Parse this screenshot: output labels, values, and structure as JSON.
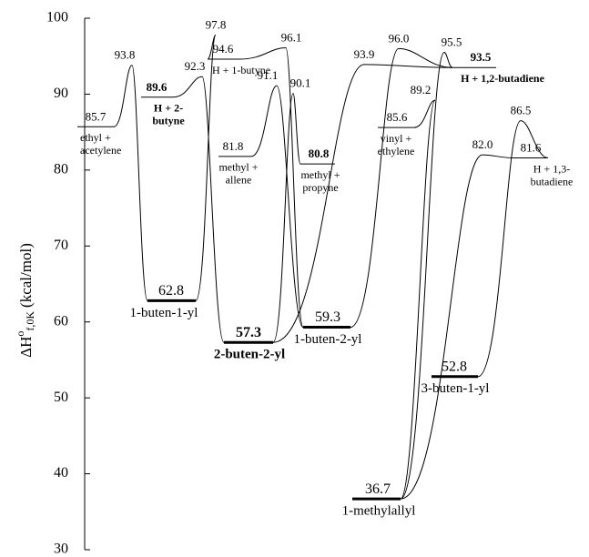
{
  "chart_data": {
    "type": "energy-diagram",
    "ylabel": {
      "main": "ΔH",
      "sup": "o",
      "sub": "f,0K",
      "unit": "(kcal/mol)"
    },
    "ylim": [
      30,
      100
    ],
    "yticks": [
      30,
      40,
      50,
      60,
      70,
      80,
      90,
      100
    ],
    "color": "#000000",
    "levels": {
      "labels": [
        [
          "ethyl +",
          "acetylene"
        ],
        [
          "H + 2-",
          "butyne"
        ],
        [
          "1-buten-1-yl"
        ],
        [
          "H + 1-butyne"
        ],
        [
          "methyl +",
          "allene"
        ],
        [
          "2-buten-2-yl"
        ],
        [
          "methyl +",
          "propyne"
        ],
        [
          "1-buten-2-yl"
        ],
        [
          "H + 1,2-butadiene"
        ],
        [
          "vinyl +",
          "ethylene"
        ],
        [
          "1-methylallyl"
        ],
        [
          "3-buten-1-yl"
        ],
        [
          "H + 1,3-",
          "butadiene"
        ]
      ],
      "values": [
        85.7,
        89.6,
        62.8,
        94.6,
        81.8,
        57.3,
        80.8,
        59.3,
        93.5,
        85.6,
        36.7,
        52.8,
        81.6
      ],
      "value_labels": [
        "85.7",
        "89.6",
        "62.8",
        "94.6",
        "81.8",
        "57.3",
        "80.8",
        "59.3",
        "93.5",
        "85.6",
        "36.7",
        "52.8",
        "81.6"
      ],
      "bold_values": [
        false,
        true,
        false,
        false,
        false,
        true,
        true,
        false,
        true,
        false,
        false,
        false,
        false
      ],
      "bold_labels": [
        false,
        true,
        false,
        false,
        false,
        true,
        false,
        false,
        true,
        false,
        false,
        false,
        false
      ]
    },
    "transition_states": {
      "values": [
        93.8,
        97.8,
        92.3,
        96.1,
        91.1,
        90.1,
        93.9,
        96.0,
        95.5,
        89.2,
        82.0,
        86.5
      ],
      "value_labels": [
        "93.8",
        "97.8",
        "92.3",
        "96.1",
        "91.1",
        "90.1",
        "93.9",
        "96.0",
        "95.5",
        "89.2",
        "82.0",
        "86.5"
      ]
    }
  }
}
